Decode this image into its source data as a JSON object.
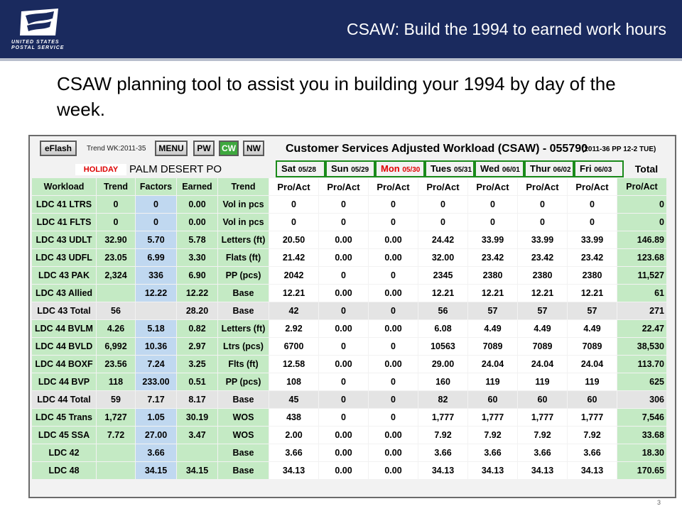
{
  "header": {
    "title": "CSAW: Build the 1994 to earned work hours",
    "logo_line1": "UNITED STATES",
    "logo_line2": "POSTAL SERVICE"
  },
  "intro": "CSAW planning tool to assist you in building your 1994 by day of the week.",
  "app": {
    "buttons": {
      "eflash": "eFlash",
      "menu": "MENU",
      "pw": "PW",
      "cw": "CW",
      "nw": "NW"
    },
    "trend_week": "Trend WK:2011-35",
    "title": "Customer Services Adjusted Workload (CSAW) - 055790",
    "pp_info": "(2011-36  PP 12-2  TUE)",
    "holiday": "HOLIDAY",
    "office": "PALM DESERT PO",
    "days": [
      {
        "name": "Sat",
        "date": "05/28"
      },
      {
        "name": "Sun",
        "date": "05/29"
      },
      {
        "name": "Mon",
        "date": "05/30"
      },
      {
        "name": "Tues",
        "date": "05/31"
      },
      {
        "name": "Wed",
        "date": "06/01"
      },
      {
        "name": "Thur",
        "date": "06/02"
      },
      {
        "name": "Fri",
        "date": "06/03"
      }
    ],
    "total_header": "Total",
    "columns": [
      "Workload",
      "Trend",
      "Factors",
      "Earned",
      "Trend",
      "Pro/Act",
      "Pro/Act",
      "Pro/Act",
      "Pro/Act",
      "Pro/Act",
      "Pro/Act",
      "Pro/Act",
      "Pro/Act"
    ],
    "rows": [
      {
        "workload": "LDC 41 LTRS",
        "trend": "0",
        "factor": "0",
        "earned": "0.00",
        "tbasis": "Vol in pcs",
        "days": [
          "0",
          "0",
          "0",
          "0",
          "0",
          "0",
          "0"
        ],
        "total": "0"
      },
      {
        "workload": "LDC 41 FLTS",
        "trend": "0",
        "factor": "0",
        "earned": "0.00",
        "tbasis": "Vol in pcs",
        "days": [
          "0",
          "0",
          "0",
          "0",
          "0",
          "0",
          "0"
        ],
        "total": "0"
      },
      {
        "workload": "LDC 43 UDLT",
        "trend": "32.90",
        "factor": "5.70",
        "earned": "5.78",
        "tbasis": "Letters (ft)",
        "days": [
          "20.50",
          "0.00",
          "0.00",
          "24.42",
          "33.99",
          "33.99",
          "33.99"
        ],
        "total": "146.89"
      },
      {
        "workload": "LDC 43 UDFL",
        "trend": "23.05",
        "factor": "6.99",
        "earned": "3.30",
        "tbasis": "Flats (ft)",
        "days": [
          "21.42",
          "0.00",
          "0.00",
          "32.00",
          "23.42",
          "23.42",
          "23.42"
        ],
        "total": "123.68"
      },
      {
        "workload": "LDC 43 PAK",
        "trend": "2,324",
        "factor": "336",
        "earned": "6.90",
        "tbasis": "PP (pcs)",
        "days": [
          "2042",
          "0",
          "0",
          "2345",
          "2380",
          "2380",
          "2380"
        ],
        "total": "11,527"
      },
      {
        "workload": "LDC 43 Allied",
        "trend": "",
        "factor": "12.22",
        "earned": "12.22",
        "tbasis": "Base",
        "days": [
          "12.21",
          "0.00",
          "0.00",
          "12.21",
          "12.21",
          "12.21",
          "12.21"
        ],
        "total": "61"
      },
      {
        "workload": "LDC 43 Total",
        "trend": "56",
        "factor": "",
        "earned": "28.20",
        "tbasis": "Base",
        "days": [
          "42",
          "0",
          "0",
          "56",
          "57",
          "57",
          "57"
        ],
        "total": "271",
        "is_total": true
      },
      {
        "workload": "LDC 44 BVLM",
        "trend": "4.26",
        "factor": "5.18",
        "earned": "0.82",
        "tbasis": "Letters (ft)",
        "days": [
          "2.92",
          "0.00",
          "0.00",
          "6.08",
          "4.49",
          "4.49",
          "4.49"
        ],
        "total": "22.47"
      },
      {
        "workload": "LDC 44 BVLD",
        "trend": "6,992",
        "factor": "10.36",
        "earned": "2.97",
        "tbasis": "Ltrs (pcs)",
        "days": [
          "6700",
          "0",
          "0",
          "10563",
          "7089",
          "7089",
          "7089"
        ],
        "total": "38,530"
      },
      {
        "workload": "LDC 44 BOXF",
        "trend": "23.56",
        "factor": "7.24",
        "earned": "3.25",
        "tbasis": "Flts (ft)",
        "days": [
          "12.58",
          "0.00",
          "0.00",
          "29.00",
          "24.04",
          "24.04",
          "24.04"
        ],
        "total": "113.70"
      },
      {
        "workload": "LDC 44 BVP",
        "trend": "118",
        "factor": "233.00",
        "earned": "0.51",
        "tbasis": "PP (pcs)",
        "days": [
          "108",
          "0",
          "0",
          "160",
          "119",
          "119",
          "119"
        ],
        "total": "625"
      },
      {
        "workload": "LDC 44 Total",
        "trend": "59",
        "factor": "7.17",
        "earned": "8.17",
        "tbasis": "Base",
        "days": [
          "45",
          "0",
          "0",
          "82",
          "60",
          "60",
          "60"
        ],
        "total": "306",
        "is_total": true
      },
      {
        "workload": "LDC 45 Trans",
        "trend": "1,727",
        "factor": "1.05",
        "earned": "30.19",
        "tbasis": "WOS",
        "days": [
          "438",
          "0",
          "0",
          "1,777",
          "1,777",
          "1,777",
          "1,777"
        ],
        "total": "7,546"
      },
      {
        "workload": "LDC 45 SSA",
        "trend": "7.72",
        "factor": "27.00",
        "earned": "3.47",
        "tbasis": "WOS",
        "days": [
          "2.00",
          "0.00",
          "0.00",
          "7.92",
          "7.92",
          "7.92",
          "7.92"
        ],
        "total": "33.68"
      },
      {
        "workload": "LDC 42",
        "trend": "",
        "factor": "3.66",
        "earned": "",
        "tbasis": "Base",
        "days": [
          "3.66",
          "0.00",
          "0.00",
          "3.66",
          "3.66",
          "3.66",
          "3.66"
        ],
        "total": "18.30"
      },
      {
        "workload": "LDC 48",
        "trend": "",
        "factor": "34.15",
        "earned": "34.15",
        "tbasis": "Base",
        "days": [
          "34.13",
          "0.00",
          "0.00",
          "34.13",
          "34.13",
          "34.13",
          "34.13"
        ],
        "total": "170.65"
      }
    ]
  },
  "slide_number": "3",
  "colors": {
    "header_bg": "#1a2a5e",
    "green_cell": "#c4eac4",
    "blue_cell": "#c0d8f0",
    "total_row": "#e4e4e4",
    "holiday_red": "#d00000"
  }
}
